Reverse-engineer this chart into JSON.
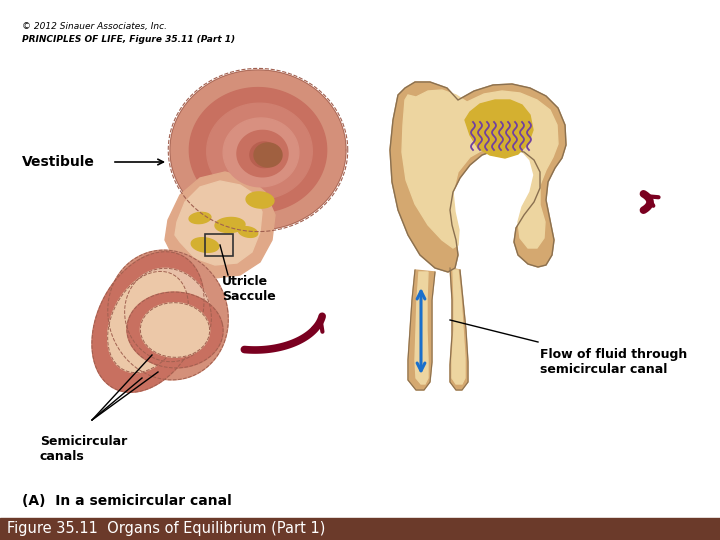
{
  "title": "Figure 35.11  Organs of Equilibrium (Part 1)",
  "title_bg_color": "#6B3A2A",
  "title_text_color": "#FFFFFF",
  "title_fontsize": 10.5,
  "bg_color": "#FFFFFF",
  "fig_width": 7.2,
  "fig_height": 5.4,
  "dpi": 100,
  "subtitle_A": "(A)  In a semicircular canal",
  "label_semicircular": "Semicircular\ncanals",
  "label_utricle": "Utricle\nSaccule",
  "label_vestibule": "Vestibule",
  "label_flow": "Flow of fluid through\nsemicircular canal",
  "label_copyright_line1": "PRINCIPLES OF LIFE, Figure 35.11 (Part 1)",
  "label_copyright_line2": "© 2012 Sinauer Associates, Inc.",
  "arrow_color": "#7A0020",
  "blue_arrow_color": "#1A6FCC",
  "ear_outer_color": "#D4907A",
  "ear_inner_color": "#E8B89A",
  "ear_mid_color": "#C87060",
  "cochlea_outer": "#D4907A",
  "cochlea_spiral": "#C07058",
  "vestibule_color": "#E0A888",
  "yellow_color": "#D4B030",
  "ampulla_outer": "#D4A870",
  "ampulla_inner": "#EDD5A0",
  "cupula_color": "#D4B030",
  "hair_color": "#7040A0",
  "line_color": "#000000",
  "box_color": "#333333"
}
